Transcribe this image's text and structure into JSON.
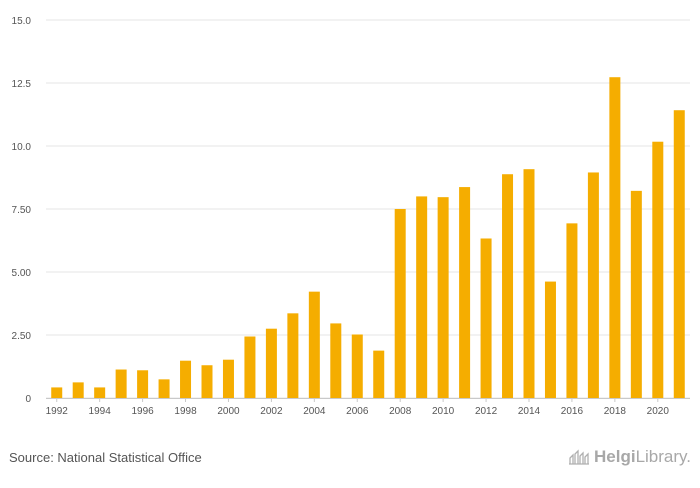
{
  "chart_data": {
    "type": "bar",
    "title": "",
    "xlabel": "",
    "ylabel": "",
    "ylim": [
      0,
      15
    ],
    "yticks": [
      "0",
      "2.50",
      "5.00",
      "7.50",
      "10.0",
      "12.5",
      "15.0"
    ],
    "ytick_values": [
      0,
      2.5,
      5,
      7.5,
      10,
      12.5,
      15
    ],
    "categories": [
      1992,
      1993,
      1994,
      1995,
      1996,
      1997,
      1998,
      1999,
      2000,
      2001,
      2002,
      2003,
      2004,
      2005,
      2006,
      2007,
      2008,
      2009,
      2010,
      2011,
      2012,
      2013,
      2014,
      2015,
      2016,
      2017,
      2018,
      2019,
      2020,
      2021
    ],
    "xtick_labels": [
      "1992",
      "1994",
      "1996",
      "1998",
      "2000",
      "2002",
      "2004",
      "2006",
      "2008",
      "2010",
      "2012",
      "2014",
      "2016",
      "2018",
      "2020"
    ],
    "values": [
      0.42,
      0.62,
      0.42,
      1.13,
      1.1,
      0.74,
      1.48,
      1.3,
      1.52,
      2.44,
      2.75,
      3.36,
      4.22,
      2.96,
      2.52,
      1.88,
      7.5,
      8.0,
      7.97,
      8.37,
      6.33,
      8.88,
      9.08,
      4.62,
      6.93,
      8.95,
      12.73,
      8.22,
      10.17,
      11.42
    ],
    "bar_color": "#f5ad00",
    "grid_color": "#e6e6e6",
    "grid": true
  },
  "footer": {
    "source": "Source: National Statistical Office",
    "brand_bold": "Helgi",
    "brand_regular": "Library",
    "brand_tld": "."
  }
}
